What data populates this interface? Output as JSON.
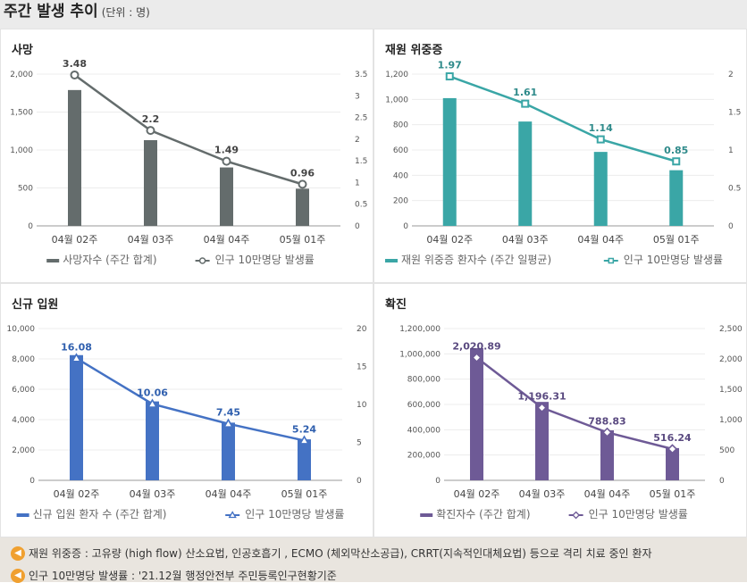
{
  "header": {
    "title": "주간 발생 추이",
    "unit": "(단위 : 명)"
  },
  "chart_data": [
    {
      "id": "deaths",
      "type": "bar",
      "title": "사망",
      "color": "#646c6c",
      "categories": [
        "04월 02주",
        "04월 03주",
        "04월 04주",
        "05월 01주"
      ],
      "series": [
        {
          "name": "사망자수 (주간 합계)",
          "type": "bar",
          "axis": "left",
          "values": [
            1790,
            1130,
            770,
            490
          ]
        },
        {
          "name": "인구 10만명당 발생률",
          "type": "line",
          "axis": "right",
          "marker": "circle",
          "values": [
            3.48,
            2.2,
            1.49,
            0.96
          ]
        }
      ],
      "data_labels": [
        "3.48",
        "2.2",
        "1.49",
        "0.96"
      ],
      "left_axis": {
        "min": 0,
        "max": 2000,
        "ticks": [
          "0",
          "500",
          "1,000",
          "1,500",
          "2,000"
        ]
      },
      "right_axis": {
        "min": 0,
        "max": 3.5,
        "ticks": [
          "0",
          "0.5",
          "1",
          "1.5",
          "2",
          "2.5",
          "3",
          "3.5"
        ]
      }
    },
    {
      "id": "critical",
      "type": "bar",
      "title": "재원 위중증",
      "color": "#3aa6a6",
      "categories": [
        "04월 02주",
        "04월 03주",
        "04월 04주",
        "05월 01주"
      ],
      "series": [
        {
          "name": "재원 위중증 환자수 (주간 일평균)",
          "type": "bar",
          "axis": "left",
          "values": [
            1010,
            825,
            585,
            440
          ]
        },
        {
          "name": "인구 10만명당 발생률",
          "type": "line",
          "axis": "right",
          "marker": "square",
          "values": [
            1.97,
            1.61,
            1.14,
            0.85
          ]
        }
      ],
      "data_labels": [
        "1.97",
        "1.61",
        "1.14",
        "0.85"
      ],
      "left_axis": {
        "min": 0,
        "max": 1200,
        "ticks": [
          "0",
          "200",
          "400",
          "600",
          "800",
          "1,000",
          "1,200"
        ]
      },
      "right_axis": {
        "min": 0,
        "max": 2,
        "ticks": [
          "0",
          "0.5",
          "1",
          "1.5",
          "2"
        ]
      }
    },
    {
      "id": "admission",
      "type": "bar",
      "title": "신규 입원",
      "color": "#4472c4",
      "categories": [
        "04월 02주",
        "04월 03주",
        "04월 04주",
        "05월 01주"
      ],
      "series": [
        {
          "name": "신규 입원 환자 수 (주간 합계)",
          "type": "bar",
          "axis": "left",
          "values": [
            8250,
            5200,
            3800,
            2700
          ]
        },
        {
          "name": "인구 10만명당 발생률",
          "type": "line",
          "axis": "right",
          "marker": "triangle",
          "values": [
            16.08,
            10.06,
            7.45,
            5.24
          ]
        }
      ],
      "data_labels": [
        "16.08",
        "10.06",
        "7.45",
        "5.24"
      ],
      "left_axis": {
        "min": 0,
        "max": 10000,
        "ticks": [
          "0",
          "2,000",
          "4,000",
          "6,000",
          "8,000",
          "10,000"
        ]
      },
      "right_axis": {
        "min": 0,
        "max": 20,
        "ticks": [
          "0",
          "5",
          "10",
          "15",
          "20"
        ]
      }
    },
    {
      "id": "confirmed",
      "type": "bar",
      "title": "확진",
      "color": "#6e5a96",
      "categories": [
        "04월 02주",
        "04월 03주",
        "04월 04주",
        "05월 01주"
      ],
      "series": [
        {
          "name": "확진자수 (주간 합계)",
          "type": "bar",
          "axis": "left",
          "values": [
            1045000,
            620000,
            395000,
            255000
          ]
        },
        {
          "name": "인구 10만명당 발생률",
          "type": "line",
          "axis": "right",
          "marker": "diamond",
          "values": [
            2020.89,
            1196.31,
            788.83,
            516.24
          ]
        }
      ],
      "data_labels": [
        "2,020.89",
        "1,196.31",
        "788.83",
        "516.24"
      ],
      "left_axis": {
        "min": 0,
        "max": 1200000,
        "ticks": [
          "0",
          "200,000",
          "400,000",
          "600,000",
          "800,000",
          "1,000,000",
          "1,200,000"
        ]
      },
      "right_axis": {
        "min": 0,
        "max": 2500,
        "ticks": [
          "0",
          "500",
          "1,000",
          "1,500",
          "2,000",
          "2,500"
        ]
      }
    }
  ],
  "footnotes": [
    {
      "icon": "speaker-icon",
      "text": "재원 위중증 : 고유량 (high flow) 산소요법, 인공호흡기 , ECMO (체외막산소공급), CRRT(지속적인대체요법) 등으로 격리 치료 중인 환자"
    },
    {
      "icon": "speaker-icon",
      "text": "인구 10만명당 발생률 : '21.12월 행정안전부 주민등록인구현황기준"
    }
  ]
}
